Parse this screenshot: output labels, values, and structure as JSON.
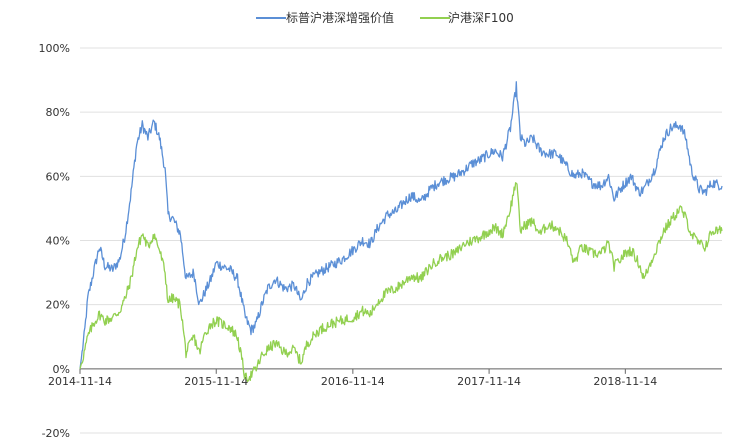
{
  "chart_data": {
    "type": "line",
    "title": "",
    "xlabel": "",
    "ylabel": "",
    "ylim": [
      -20,
      100
    ],
    "y_unit": "%",
    "y_ticks": [
      -20,
      0,
      20,
      40,
      60,
      80,
      100
    ],
    "y_tick_labels": [
      "-20%",
      "0%",
      "20%",
      "40%",
      "60%",
      "80%",
      "100%"
    ],
    "x_tick_labels": [
      "2014-11-14",
      "2015-11-14",
      "2016-11-14",
      "2017-11-14",
      "2018-11-14"
    ],
    "x_range": [
      "2014-11-14",
      "2019-07-31"
    ],
    "grid": "horizontal",
    "legend_position": "top-center",
    "series": [
      {
        "name": "标普沪港深增强价值",
        "color": "#5b8fd6",
        "points": [
          [
            "2014-11-14",
            0
          ],
          [
            "2014-11-25",
            10
          ],
          [
            "2014-12-05",
            22
          ],
          [
            "2014-12-20",
            30
          ],
          [
            "2015-01-05",
            38
          ],
          [
            "2015-01-20",
            32
          ],
          [
            "2015-02-10",
            31
          ],
          [
            "2015-02-28",
            34
          ],
          [
            "2015-03-15",
            42
          ],
          [
            "2015-03-31",
            55
          ],
          [
            "2015-04-15",
            70
          ],
          [
            "2015-04-30",
            76
          ],
          [
            "2015-05-15",
            72
          ],
          [
            "2015-05-31",
            77
          ],
          [
            "2015-06-15",
            72
          ],
          [
            "2015-06-30",
            62
          ],
          [
            "2015-07-08",
            48
          ],
          [
            "2015-07-20",
            47
          ],
          [
            "2015-08-10",
            42
          ],
          [
            "2015-08-25",
            28
          ],
          [
            "2015-09-15",
            30
          ],
          [
            "2015-09-30",
            20
          ],
          [
            "2015-10-15",
            24
          ],
          [
            "2015-10-31",
            28
          ],
          [
            "2015-11-14",
            33
          ],
          [
            "2015-11-30",
            32
          ],
          [
            "2015-12-20",
            31
          ],
          [
            "2016-01-10",
            28
          ],
          [
            "2016-01-31",
            16
          ],
          [
            "2016-02-15",
            12
          ],
          [
            "2016-02-29",
            14
          ],
          [
            "2016-03-15",
            20
          ],
          [
            "2016-03-31",
            25
          ],
          [
            "2016-04-20",
            28
          ],
          [
            "2016-05-15",
            25
          ],
          [
            "2016-06-10",
            26
          ],
          [
            "2016-06-28",
            21
          ],
          [
            "2016-07-15",
            27
          ],
          [
            "2016-08-15",
            30
          ],
          [
            "2016-09-15",
            32
          ],
          [
            "2016-10-15",
            34
          ],
          [
            "2016-11-14",
            37
          ],
          [
            "2016-12-10",
            40
          ],
          [
            "2016-12-31",
            39
          ],
          [
            "2017-01-20",
            44
          ],
          [
            "2017-02-15",
            48
          ],
          [
            "2017-03-10",
            49
          ],
          [
            "2017-03-31",
            52
          ],
          [
            "2017-04-20",
            54
          ],
          [
            "2017-05-15",
            52
          ],
          [
            "2017-06-10",
            56
          ],
          [
            "2017-06-30",
            58
          ],
          [
            "2017-07-20",
            59
          ],
          [
            "2017-08-15",
            60
          ],
          [
            "2017-09-10",
            62
          ],
          [
            "2017-09-30",
            64
          ],
          [
            "2017-10-20",
            65
          ],
          [
            "2017-11-14",
            67
          ],
          [
            "2017-11-30",
            68
          ],
          [
            "2017-12-20",
            66
          ],
          [
            "2018-01-10",
            75
          ],
          [
            "2018-01-26",
            88
          ],
          [
            "2018-02-06",
            72
          ],
          [
            "2018-02-20",
            70
          ],
          [
            "2018-03-10",
            72
          ],
          [
            "2018-03-31",
            68
          ],
          [
            "2018-04-20",
            67
          ],
          [
            "2018-05-15",
            67
          ],
          [
            "2018-06-10",
            63
          ],
          [
            "2018-06-30",
            60
          ],
          [
            "2018-07-20",
            61
          ],
          [
            "2018-08-15",
            58
          ],
          [
            "2018-09-10",
            57
          ],
          [
            "2018-09-30",
            60
          ],
          [
            "2018-10-15",
            53
          ],
          [
            "2018-10-31",
            56
          ],
          [
            "2018-11-14",
            58
          ],
          [
            "2018-11-30",
            60
          ],
          [
            "2018-12-20",
            55
          ],
          [
            "2019-01-03",
            56
          ],
          [
            "2019-01-31",
            62
          ],
          [
            "2019-02-25",
            72
          ],
          [
            "2019-03-15",
            75
          ],
          [
            "2019-04-10",
            76
          ],
          [
            "2019-04-25",
            72
          ],
          [
            "2019-05-10",
            62
          ],
          [
            "2019-05-31",
            56
          ],
          [
            "2019-06-15",
            55
          ],
          [
            "2019-07-05",
            58
          ],
          [
            "2019-07-31",
            57
          ]
        ]
      },
      {
        "name": "沪港深F100",
        "color": "#92d050",
        "points": [
          [
            "2014-11-14",
            0
          ],
          [
            "2014-11-25",
            5
          ],
          [
            "2014-12-05",
            10
          ],
          [
            "2014-12-20",
            14
          ],
          [
            "2015-01-05",
            17
          ],
          [
            "2015-01-20",
            15
          ],
          [
            "2015-02-10",
            16
          ],
          [
            "2015-02-28",
            18
          ],
          [
            "2015-03-15",
            22
          ],
          [
            "2015-03-31",
            28
          ],
          [
            "2015-04-15",
            37
          ],
          [
            "2015-04-30",
            42
          ],
          [
            "2015-05-15",
            38
          ],
          [
            "2015-05-31",
            42
          ],
          [
            "2015-06-15",
            37
          ],
          [
            "2015-06-30",
            30
          ],
          [
            "2015-07-08",
            21
          ],
          [
            "2015-07-20",
            22
          ],
          [
            "2015-08-10",
            20
          ],
          [
            "2015-08-25",
            5
          ],
          [
            "2015-09-15",
            10
          ],
          [
            "2015-09-30",
            5
          ],
          [
            "2015-10-15",
            11
          ],
          [
            "2015-10-31",
            14
          ],
          [
            "2015-11-14",
            15
          ],
          [
            "2015-11-30",
            14
          ],
          [
            "2015-12-20",
            13
          ],
          [
            "2016-01-10",
            10
          ],
          [
            "2016-01-31",
            -3
          ],
          [
            "2016-02-15",
            -2
          ],
          [
            "2016-02-29",
            0
          ],
          [
            "2016-03-15",
            4
          ],
          [
            "2016-03-31",
            6
          ],
          [
            "2016-04-20",
            8
          ],
          [
            "2016-05-15",
            5
          ],
          [
            "2016-06-10",
            6
          ],
          [
            "2016-06-28",
            2
          ],
          [
            "2016-07-15",
            8
          ],
          [
            "2016-08-15",
            12
          ],
          [
            "2016-09-15",
            14
          ],
          [
            "2016-10-15",
            15
          ],
          [
            "2016-11-14",
            16
          ],
          [
            "2016-12-10",
            18
          ],
          [
            "2016-12-31",
            17
          ],
          [
            "2017-01-20",
            21
          ],
          [
            "2017-02-15",
            24
          ],
          [
            "2017-03-10",
            25
          ],
          [
            "2017-03-31",
            27
          ],
          [
            "2017-04-20",
            29
          ],
          [
            "2017-05-15",
            28
          ],
          [
            "2017-06-10",
            32
          ],
          [
            "2017-06-30",
            34
          ],
          [
            "2017-07-20",
            35
          ],
          [
            "2017-08-15",
            36
          ],
          [
            "2017-09-10",
            39
          ],
          [
            "2017-09-30",
            40
          ],
          [
            "2017-10-20",
            41
          ],
          [
            "2017-11-14",
            43
          ],
          [
            "2017-11-30",
            44
          ],
          [
            "2017-12-20",
            42
          ],
          [
            "2018-01-10",
            50
          ],
          [
            "2018-01-26",
            59
          ],
          [
            "2018-02-06",
            43
          ],
          [
            "2018-02-20",
            45
          ],
          [
            "2018-03-10",
            46
          ],
          [
            "2018-03-31",
            42
          ],
          [
            "2018-04-20",
            45
          ],
          [
            "2018-05-15",
            44
          ],
          [
            "2018-06-10",
            40
          ],
          [
            "2018-06-30",
            33
          ],
          [
            "2018-07-20",
            38
          ],
          [
            "2018-08-15",
            36
          ],
          [
            "2018-09-10",
            36
          ],
          [
            "2018-09-30",
            39
          ],
          [
            "2018-10-15",
            32
          ],
          [
            "2018-10-31",
            34
          ],
          [
            "2018-11-14",
            36
          ],
          [
            "2018-11-30",
            37
          ],
          [
            "2018-12-20",
            33
          ],
          [
            "2019-01-03",
            28
          ],
          [
            "2019-01-31",
            36
          ],
          [
            "2019-02-25",
            43
          ],
          [
            "2019-03-15",
            46
          ],
          [
            "2019-04-10",
            50
          ],
          [
            "2019-04-25",
            47
          ],
          [
            "2019-05-10",
            42
          ],
          [
            "2019-05-31",
            39
          ],
          [
            "2019-06-15",
            38
          ],
          [
            "2019-07-05",
            43
          ],
          [
            "2019-07-31",
            43
          ]
        ]
      }
    ]
  }
}
